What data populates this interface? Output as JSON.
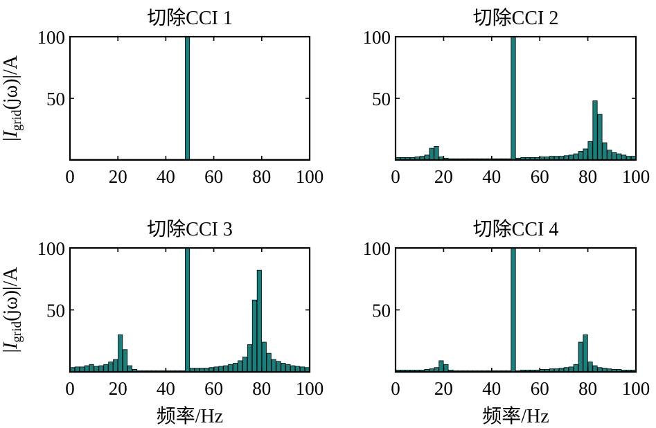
{
  "figure": {
    "xlabel": "频率/Hz",
    "ylabel": {
      "prefix": "|",
      "main": "I",
      "sub": "grid",
      "suffix": "(jω)|/A"
    }
  },
  "chart_data": [
    {
      "type": "bar",
      "title": "切除CCI 1",
      "xlabel": "频率/Hz",
      "ylabel": "|Igrid(jω)|/A",
      "xlim": [
        0,
        100
      ],
      "ylim": [
        0,
        100
      ],
      "x_ticks": [
        "0",
        "20",
        "40",
        "60",
        "80",
        "100"
      ],
      "y_ticks": [
        "50",
        "100"
      ],
      "bin_width_hz": 2,
      "bar_color": "#17807c",
      "values": [
        0.5,
        0.5,
        0.5,
        0.5,
        0.5,
        0.5,
        0.5,
        0.5,
        0.5,
        0.5,
        0.5,
        0.5,
        0.5,
        0.5,
        0.5,
        0.5,
        0.5,
        0.5,
        0.5,
        0.5,
        0.5,
        0.5,
        0.5,
        0.5,
        100,
        0.5,
        0.5,
        0.5,
        0.5,
        0.5,
        0.5,
        0.5,
        0.5,
        0.5,
        0.5,
        0.5,
        0.5,
        0.5,
        0.5,
        0.5,
        0.5,
        0.5,
        0.5,
        0.5,
        0.5,
        0.5,
        0.5,
        0.5,
        0.5,
        0.5
      ]
    },
    {
      "type": "bar",
      "title": "切除CCI 2",
      "xlabel": "频率/Hz",
      "ylabel": "|Igrid(jω)|/A",
      "xlim": [
        0,
        100
      ],
      "ylim": [
        0,
        100
      ],
      "x_ticks": [
        "0",
        "20",
        "40",
        "60",
        "80",
        "100"
      ],
      "y_ticks": [
        "50",
        "100"
      ],
      "bin_width_hz": 2,
      "bar_color": "#17807c",
      "values": [
        2,
        2,
        2,
        2,
        2.5,
        3,
        4,
        9.5,
        11,
        2.5,
        1.5,
        1,
        1,
        1,
        1,
        1,
        1,
        1,
        1,
        1,
        1,
        1,
        1,
        1,
        100,
        1.5,
        2,
        2,
        2,
        2,
        2.5,
        2.5,
        3,
        3,
        3,
        3.5,
        4,
        5,
        7,
        9,
        15,
        48,
        37,
        14,
        8,
        6,
        5,
        4,
        3,
        3
      ]
    },
    {
      "type": "bar",
      "title": "切除CCI 3",
      "xlabel": "频率/Hz",
      "ylabel": "|Igrid(jω)|/A",
      "xlim": [
        0,
        100
      ],
      "ylim": [
        0,
        100
      ],
      "x_ticks": [
        "0",
        "20",
        "40",
        "60",
        "80",
        "100"
      ],
      "y_ticks": [
        "50",
        "100"
      ],
      "bin_width_hz": 2,
      "bar_color": "#17807c",
      "values": [
        3.5,
        4,
        4,
        5,
        6,
        4.5,
        5,
        6,
        8,
        10,
        30,
        18,
        5,
        2,
        1,
        1,
        1,
        1,
        1,
        1,
        1,
        1,
        1,
        1,
        100,
        3,
        3,
        3,
        3,
        3.5,
        4,
        4.5,
        5,
        6,
        7,
        9,
        12,
        22,
        58,
        82,
        24,
        15,
        10,
        8.5,
        7,
        6,
        5,
        4.5,
        4,
        3.5
      ]
    },
    {
      "type": "bar",
      "title": "切除CCI 4",
      "xlabel": "频率/Hz",
      "ylabel": "|Igrid(jω)|/A",
      "xlim": [
        0,
        100
      ],
      "ylim": [
        0,
        100
      ],
      "x_ticks": [
        "0",
        "20",
        "40",
        "60",
        "80",
        "100"
      ],
      "y_ticks": [
        "50",
        "100"
      ],
      "bin_width_hz": 2,
      "bar_color": "#17807c",
      "values": [
        1.5,
        1.5,
        1.5,
        1.5,
        1.5,
        1.5,
        2,
        2.5,
        3.5,
        9,
        6,
        1.5,
        1,
        1,
        1,
        1,
        1,
        1,
        1,
        1,
        1,
        1,
        1,
        1,
        100,
        1,
        1.5,
        1.5,
        1.5,
        1.5,
        2,
        2,
        2.5,
        2.5,
        3,
        3.5,
        4,
        6,
        24,
        30,
        8,
        5,
        3.5,
        3,
        2.5,
        2,
        2,
        1.5,
        1.5,
        1.5
      ]
    }
  ]
}
